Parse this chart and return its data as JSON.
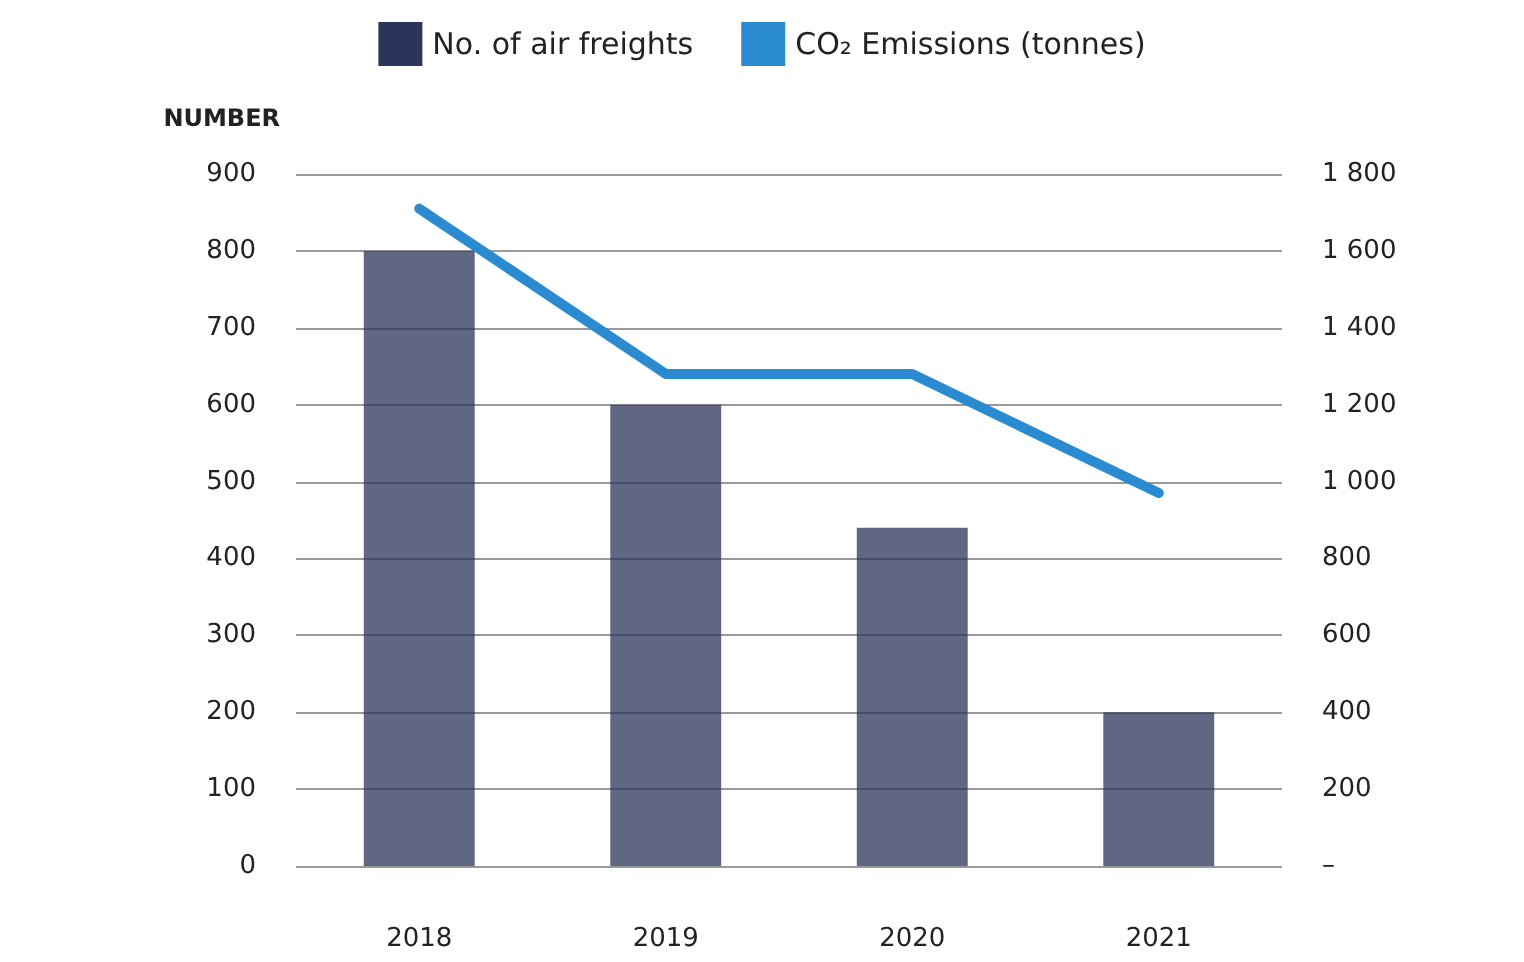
{
  "chart_data": {
    "type": "bar",
    "ylabel": "NUMBER",
    "categories": [
      "2018",
      "2019",
      "2020",
      "2021"
    ],
    "series": [
      {
        "name": "No. of air freights",
        "color": "#2b3459",
        "values": [
          800,
          600,
          440,
          200
        ]
      },
      {
        "name": "CO₂ Emissions (tonnes)",
        "type": "line",
        "axis": "y2",
        "color": "#2a8bd0",
        "values": [
          1710,
          1280,
          1280,
          970
        ]
      }
    ],
    "ylim": [
      0,
      900
    ],
    "yticks": [
      0,
      100,
      200,
      300,
      400,
      500,
      600,
      700,
      800,
      900
    ],
    "y2lim": [
      0,
      1800
    ],
    "y2ticks": [
      {
        "value": 0,
        "label": "–"
      },
      200,
      400,
      600,
      800,
      {
        "value": 1000,
        "label": "1 000"
      },
      {
        "value": 1200,
        "label": "1 200"
      },
      {
        "value": 1400,
        "label": "1 400"
      },
      {
        "value": 1600,
        "label": "1 600"
      },
      {
        "value": 1800,
        "label": "1 800"
      }
    ],
    "grid": "y",
    "legend": "top",
    "marker": "none",
    "line_style": "solid"
  }
}
